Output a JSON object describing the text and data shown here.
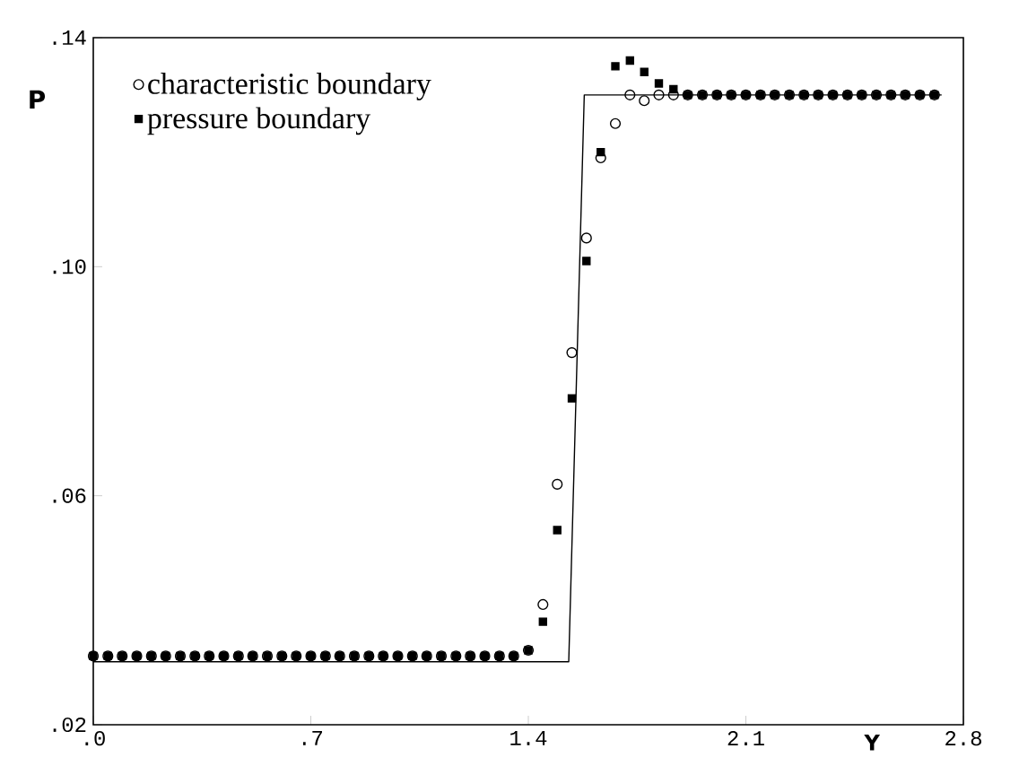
{
  "chart_data": {
    "type": "scatter",
    "xlabel": "Y",
    "ylabel": "P",
    "x": [
      0,
      0.047,
      0.093,
      0.14,
      0.187,
      0.233,
      0.28,
      0.327,
      0.373,
      0.42,
      0.467,
      0.513,
      0.56,
      0.607,
      0.653,
      0.7,
      0.747,
      0.793,
      0.84,
      0.887,
      0.933,
      0.98,
      1.027,
      1.073,
      1.12,
      1.167,
      1.213,
      1.26,
      1.307,
      1.353,
      1.4,
      1.447,
      1.493,
      1.54,
      1.587,
      1.633,
      1.68,
      1.727,
      1.773,
      1.82,
      1.867,
      1.913,
      1.96,
      2.007,
      2.053,
      2.1,
      2.147,
      2.193,
      2.24,
      2.287,
      2.333,
      2.38,
      2.427,
      2.473,
      2.52,
      2.567,
      2.613,
      2.66,
      2.707
    ],
    "series": [
      {
        "name": "characteristic boundary",
        "color": "#000000",
        "marker": "circle",
        "values": [
          0.032,
          0.032,
          0.032,
          0.032,
          0.032,
          0.032,
          0.032,
          0.032,
          0.032,
          0.032,
          0.032,
          0.032,
          0.032,
          0.032,
          0.032,
          0.032,
          0.032,
          0.032,
          0.032,
          0.032,
          0.032,
          0.032,
          0.032,
          0.032,
          0.032,
          0.032,
          0.032,
          0.032,
          0.032,
          0.032,
          0.033,
          0.041,
          0.062,
          0.085,
          0.105,
          0.119,
          0.125,
          0.13,
          0.129,
          0.13,
          0.13,
          0.13,
          0.13,
          0.13,
          0.13,
          0.13,
          0.13,
          0.13,
          0.13,
          0.13,
          0.13,
          0.13,
          0.13,
          0.13,
          0.13,
          0.13,
          0.13,
          0.13,
          0.13
        ]
      },
      {
        "name": "pressure boundary",
        "color": "#000000",
        "marker": "square",
        "values": [
          0.032,
          0.032,
          0.032,
          0.032,
          0.032,
          0.032,
          0.032,
          0.032,
          0.032,
          0.032,
          0.032,
          0.032,
          0.032,
          0.032,
          0.032,
          0.032,
          0.032,
          0.032,
          0.032,
          0.032,
          0.032,
          0.032,
          0.032,
          0.032,
          0.032,
          0.032,
          0.032,
          0.032,
          0.032,
          0.032,
          0.033,
          0.038,
          0.054,
          0.077,
          0.101,
          0.12,
          0.135,
          0.136,
          0.134,
          0.132,
          0.131,
          0.13,
          0.13,
          0.13,
          0.13,
          0.13,
          0.13,
          0.13,
          0.13,
          0.13,
          0.13,
          0.13,
          0.13,
          0.13,
          0.13,
          0.13,
          0.13,
          0.13,
          0.13
        ]
      },
      {
        "type": "line",
        "color": "#000000",
        "marker": "none",
        "line_style": "solid",
        "x": [
          0,
          1.53,
          1.58,
          2.73
        ],
        "values": [
          0.031,
          0.031,
          0.13,
          0.13
        ]
      }
    ],
    "xlim": [
      0,
      2.8
    ],
    "ylim": [
      0.02,
      0.14
    ],
    "xticks": [
      {
        "value": 0,
        "label": ".0"
      },
      {
        "value": 0.7,
        "label": ".7"
      },
      1.4,
      2.1,
      2.8
    ],
    "yticks": [
      {
        "value": 0.02,
        "label": ".02"
      },
      {
        "value": 0.06,
        "label": ".06"
      },
      {
        "value": 0.1,
        "label": ".10"
      },
      {
        "value": 0.14,
        "label": ".14"
      }
    ],
    "grid": false,
    "legend": "top left"
  }
}
